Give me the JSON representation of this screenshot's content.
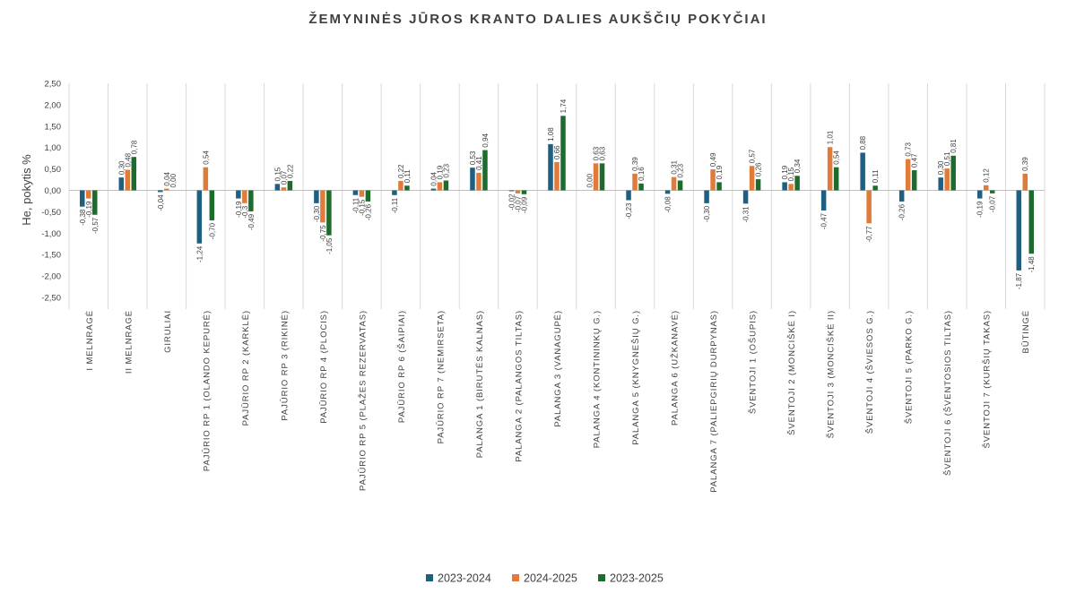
{
  "chart_data": {
    "type": "bar",
    "title": "ŽEMYNINĖS JŪROS KRANTO DALIES AUKŠČIŲ POKYČIAI",
    "ylabel": "He, pokytis %",
    "xlabel": "",
    "ylim": [
      -2.5,
      2.5
    ],
    "yticks": [
      2.5,
      2.0,
      1.5,
      1.0,
      0.5,
      0.0,
      -0.5,
      -1.0,
      -1.5,
      -2.0,
      -2.5
    ],
    "ytick_labels": [
      "2,50",
      "2,00",
      "1,50",
      "1,00",
      "0,50",
      "0,00",
      "-0,50",
      "-1,00",
      "-1,50",
      "-2,00",
      "-2,50"
    ],
    "grid": "vertical separators between categories",
    "legend_position": "bottom",
    "categories": [
      "I MELNRAGĖ",
      "II MELNRAGĖ",
      "GIRULIAI",
      "PAJŪRIO RP 1 (OLANDO KEPURĖ)",
      "PAJŪRIO RP 2 (KARKLĖ)",
      "PAJŪRIO RP 3 (RIKINĖ)",
      "PAJŪRIO RP 4 (PLOCIS)",
      "PAJŪRIO RP 5 (PLAŽES REZERVATAS)",
      "PAJŪRIO RP 6 (ŠAIPIAI)",
      "PAJŪRIO RP 7 (NEMIRSETA)",
      "PALANGA 1 (BIRUTĖS KALNAS)",
      "PALANGA 2 (PALANGOS TILTAS)",
      "PALANGA 3 (VANAGUPĖ)",
      "PALANGA 4 (KONTININKŲ G.)",
      "PALANGA 5 (KNYGNEŠIŲ G.)",
      "PALANGA 6 (UŽKANAVĖ)",
      "PALANGA 7 (PALIEPGIRIŲ DURPYNAS)",
      "ŠVENTOJI 1 (OŠUPIS)",
      "ŠVENTOJI 2 (MONCIŠKĖ I)",
      "ŠVENTOJI 3 (MONCIŠKĖ II)",
      "ŠVENTOJI 4 (ŠVIESOS G.)",
      "ŠVENTOJI 5 (PARKO G.)",
      "ŠVENTOJI 6 (ŠVENTOSIOS TILTAS)",
      "ŠVENTOJI 7 (KURŠIŲ TAKAS)",
      "BŪTINGĖ"
    ],
    "series": [
      {
        "name": "2023-2024",
        "color": "#1f5f7f",
        "values": [
          -0.38,
          0.3,
          -0.04,
          -1.24,
          -0.19,
          0.15,
          -0.3,
          -0.11,
          -0.11,
          0.04,
          0.53,
          -0.02,
          1.08,
          0.0,
          -0.23,
          -0.08,
          -0.3,
          -0.31,
          0.19,
          -0.47,
          0.88,
          -0.26,
          0.3,
          -0.19,
          -1.87
        ],
        "labels": [
          "-0,38",
          "0,30",
          "-0,04",
          "-1,24",
          "-0,19",
          "0,15",
          "-0,30",
          "-0,11",
          "-0,11",
          "0,04",
          "0,53",
          "-0,02",
          "1,08",
          "0,00",
          "-0,23",
          "-0,08",
          "-0,30",
          "-0,31",
          "0,19",
          "-0,47",
          "0,88",
          "-0,26",
          "0,30",
          "-0,19",
          "-1,87"
        ]
      },
      {
        "name": "2024-2025",
        "color": "#e07b39",
        "values": [
          -0.19,
          0.48,
          0.04,
          0.54,
          -0.3,
          0.07,
          -0.75,
          -0.15,
          0.22,
          0.19,
          0.41,
          -0.07,
          0.66,
          0.63,
          0.39,
          0.31,
          0.49,
          0.57,
          0.15,
          1.01,
          -0.77,
          0.73,
          0.51,
          0.12,
          0.39
        ],
        "labels": [
          "-0,19",
          "0,48",
          "0,04",
          "0,54",
          "-0,3",
          "0,07",
          "-0,75",
          "-0,15",
          "0,22",
          "0,19",
          "0,41",
          "-0,07",
          "0,66",
          "0,63",
          "0,39",
          "0,31",
          "0,49",
          "0,57",
          "0,15",
          "1,01",
          "-0,77",
          "0,73",
          "0,51",
          "0,12",
          "0,39"
        ]
      },
      {
        "name": "2023-2025",
        "color": "#1e6b2e",
        "values": [
          -0.57,
          0.78,
          0.0,
          -0.7,
          -0.49,
          0.22,
          -1.05,
          -0.26,
          0.11,
          0.23,
          0.94,
          -0.09,
          1.74,
          0.63,
          0.16,
          0.23,
          0.19,
          0.26,
          0.34,
          0.54,
          0.11,
          0.47,
          0.81,
          -0.07,
          -1.48
        ],
        "labels": [
          "-0,57",
          "0,78",
          "0,00",
          "-0,70",
          "-0,49",
          "0,22",
          "-1,05",
          "-0,26",
          "0,11",
          "0,23",
          "0,94",
          "-0,09",
          "1,74",
          "0,63",
          "0,16",
          "0,23",
          "0,19",
          "0,26",
          "0,34",
          "0,54",
          "0,11",
          "0,47",
          "0,81",
          "-0,07",
          "-1,48"
        ]
      }
    ]
  },
  "colors": {
    "background": "#ffffff",
    "text": "#404040",
    "zero_line": "#bfbfbf",
    "separator": "#d9d9d9"
  }
}
